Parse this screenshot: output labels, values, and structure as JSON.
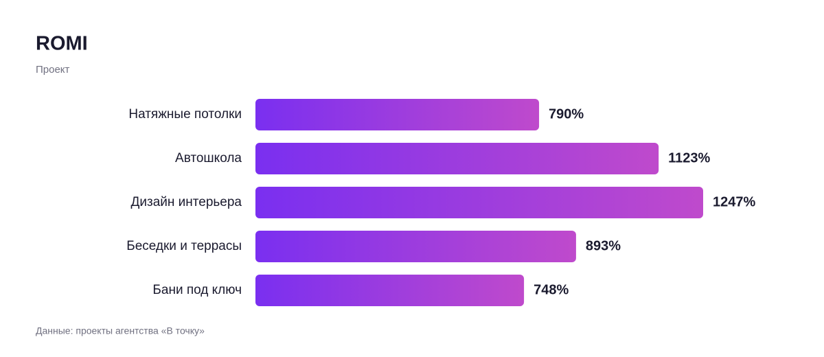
{
  "chart_data": {
    "type": "barh",
    "title": "ROMI",
    "subtitle": "Проект",
    "categories": [
      "Натяжные потолки",
      "Автошкола",
      "Дизайн интерьера",
      "Беседки и террасы",
      "Бани под ключ"
    ],
    "values": [
      790,
      1123,
      1247,
      893,
      748
    ],
    "value_labels": [
      "790%",
      "1123%",
      "1247%",
      "893%",
      "748%"
    ],
    "gradient": [
      "#7a2ff0",
      "#bf4acc"
    ],
    "source": "Данные: проекты агентства «В точку»"
  }
}
